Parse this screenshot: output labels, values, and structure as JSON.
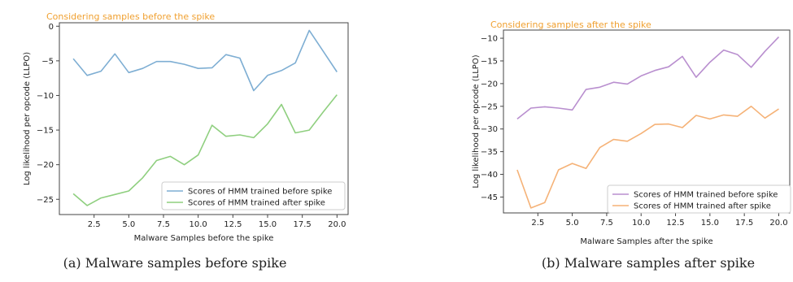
{
  "chart_data": [
    {
      "type": "line",
      "title": "Considering samples before the spike",
      "xlabel": "Malware Samples before the spike",
      "ylabel": "Log likelihood per opcode (LLPO)",
      "xlim": [
        0,
        20.8
      ],
      "ylim": [
        -27.2,
        0.5
      ],
      "xticks": [
        2.5,
        5.0,
        7.5,
        10.0,
        12.5,
        15.0,
        17.5,
        20.0
      ],
      "xtick_labels": [
        "2.5",
        "5.0",
        "7.5",
        "10.0",
        "12.5",
        "15.0",
        "17.5",
        "20.0"
      ],
      "yticks": [
        0,
        -5,
        -10,
        -15,
        -20,
        -25
      ],
      "ytick_labels": [
        "0",
        "−5",
        "−10",
        "−15",
        "−20",
        "−25"
      ],
      "legend_position": "lower-right",
      "grid": false,
      "caption": "(a) Malware samples before spike",
      "x": [
        1,
        2,
        3,
        4,
        5,
        6,
        7,
        8,
        9,
        10,
        11,
        12,
        13,
        14,
        15,
        16,
        17,
        18,
        19,
        20
      ],
      "series": [
        {
          "name": "Scores of HMM trained before spike",
          "color": "#7eaed3",
          "values": [
            -4.7,
            -7.1,
            -6.5,
            -4.0,
            -6.7,
            -6.1,
            -5.1,
            -5.1,
            -5.5,
            -6.1,
            -6.0,
            -4.1,
            -4.6,
            -9.3,
            -7.1,
            -6.4,
            -5.3,
            -0.6,
            -3.6,
            -6.6
          ]
        },
        {
          "name": "Scores of HMM trained after spike",
          "color": "#8fcf7f",
          "values": [
            -24.2,
            -25.9,
            -24.8,
            -24.3,
            -23.8,
            -21.9,
            -19.4,
            -18.8,
            -20.0,
            -18.6,
            -14.3,
            -15.9,
            -15.7,
            -16.1,
            -14.1,
            -11.3,
            -15.4,
            -15.0,
            -12.4,
            -9.9
          ]
        }
      ]
    },
    {
      "type": "line",
      "title": "Considering samples after the spike",
      "xlabel": "Malware Samples after the spike",
      "ylabel": "Log likelihood per opcode (LLPO)",
      "xlim": [
        0,
        20.8
      ],
      "ylim": [
        -48.5,
        -8.2
      ],
      "xticks": [
        2.5,
        5.0,
        7.5,
        10.0,
        12.5,
        15.0,
        17.5,
        20.0
      ],
      "xtick_labels": [
        "2.5",
        "5.0",
        "7.5",
        "10.0",
        "12.5",
        "15.0",
        "17.5",
        "20.0"
      ],
      "yticks": [
        -10,
        -15,
        -20,
        -25,
        -30,
        -35,
        -40,
        -45
      ],
      "ytick_labels": [
        "−10",
        "−15",
        "−20",
        "−25",
        "−30",
        "−35",
        "−40",
        "−45"
      ],
      "legend_position": "lower-right",
      "grid": false,
      "caption": "(b) Malware samples after spike",
      "x": [
        1,
        2,
        3,
        4,
        5,
        6,
        7,
        8,
        9,
        10,
        11,
        12,
        13,
        14,
        15,
        16,
        17,
        18,
        19,
        20
      ],
      "series": [
        {
          "name": "Scores of HMM trained before spike",
          "color": "#b98fcf",
          "values": [
            -27.8,
            -25.4,
            -25.1,
            -25.4,
            -25.8,
            -21.3,
            -20.8,
            -19.7,
            -20.1,
            -18.3,
            -17.1,
            -16.3,
            -14.0,
            -18.6,
            -15.3,
            -12.6,
            -13.6,
            -16.4,
            -12.9,
            -9.7
          ]
        },
        {
          "name": "Scores of HMM trained after spike",
          "color": "#f5b277",
          "values": [
            -39.0,
            -47.4,
            -46.2,
            -39.0,
            -37.6,
            -38.7,
            -34.1,
            -32.3,
            -32.7,
            -31.0,
            -29.0,
            -28.9,
            -29.7,
            -27.0,
            -27.8,
            -26.9,
            -27.2,
            -25.0,
            -27.6,
            -25.6
          ]
        }
      ]
    }
  ],
  "title_color": "#f0a030"
}
